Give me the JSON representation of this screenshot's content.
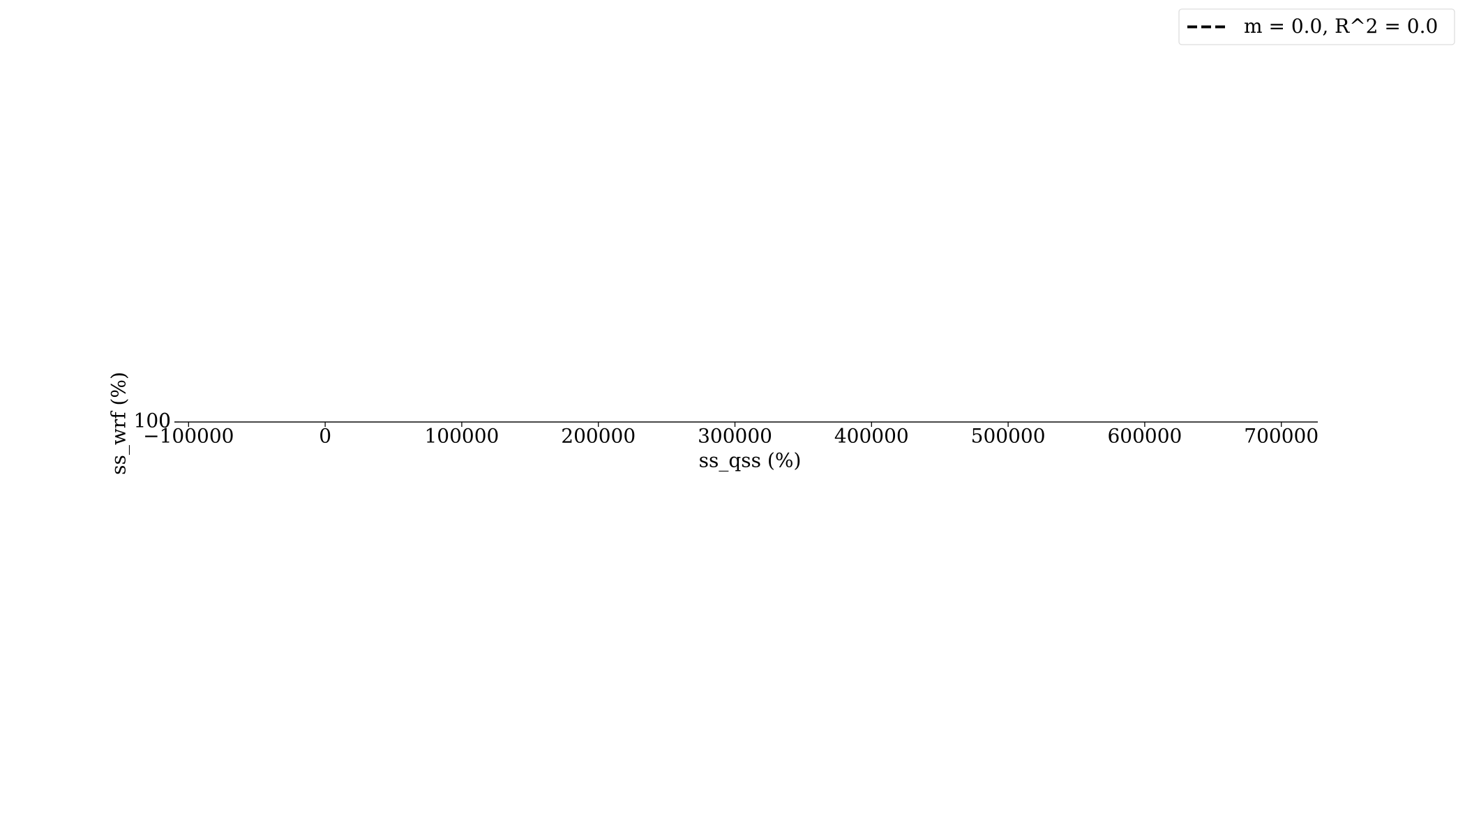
{
  "chart_data": {
    "type": "line",
    "xlabel": "ss_qss (%)",
    "ylabel": "ss_wrf (%)",
    "xlim": [
      -106800,
      726700
    ],
    "xticks": [
      {
        "value": -100000,
        "label": "−100000"
      },
      0,
      100000,
      200000,
      300000,
      400000,
      500000,
      600000,
      700000
    ],
    "ylim": [
      0,
      100
    ],
    "yticks": [
      0,
      100
    ],
    "series": [
      {
        "name": "m = 0.0, R^2 = 0.0",
        "color": "#000000",
        "linestyle": "dashed"
      }
    ],
    "legend": "upper right"
  }
}
